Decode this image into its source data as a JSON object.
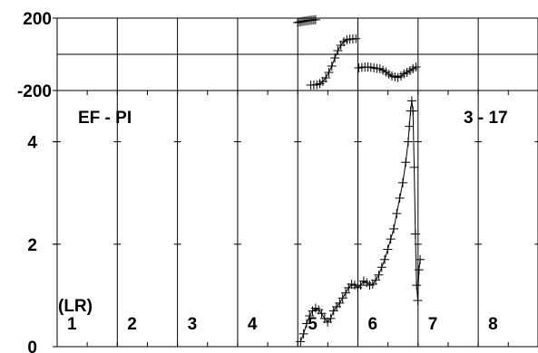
{
  "chart_data": [
    {
      "type": "scatter",
      "panel": "phase",
      "ylim": [
        -200,
        200
      ],
      "xlim": [
        0,
        8
      ],
      "yticks": [
        {
          "value": 200,
          "label": "200"
        },
        {
          "value": -200,
          "label": "-200"
        }
      ],
      "reference_line": 0,
      "series": [
        {
          "segment": 1,
          "x": [
            4.0,
            4.03,
            4.06,
            4.09,
            4.12,
            4.15,
            4.18,
            4.21,
            4.24,
            4.27,
            4.3
          ],
          "y": [
            175,
            178,
            180,
            182,
            184,
            185,
            187,
            188,
            189,
            190,
            191
          ]
        },
        {
          "segment": 2,
          "x": [
            4.22,
            4.27,
            4.32,
            4.37,
            4.42,
            4.47,
            4.52,
            4.57,
            4.62,
            4.67,
            4.72,
            4.77,
            4.82,
            4.87,
            4.92,
            4.97
          ],
          "y": [
            -170,
            -170,
            -168,
            -162,
            -150,
            -130,
            -100,
            -65,
            -20,
            20,
            50,
            70,
            80,
            84,
            85,
            86
          ]
        },
        {
          "segment": 3,
          "x": [
            5.02,
            5.07,
            5.12,
            5.17,
            5.22,
            5.27,
            5.32,
            5.37,
            5.42,
            5.47,
            5.52,
            5.57,
            5.62,
            5.67,
            5.72,
            5.77,
            5.82,
            5.87,
            5.92,
            5.97
          ],
          "y": [
            -75,
            -72,
            -70,
            -70,
            -72,
            -75,
            -78,
            -80,
            -88,
            -98,
            -110,
            -120,
            -125,
            -128,
            -120,
            -108,
            -100,
            -90,
            -80,
            -70
          ]
        }
      ]
    },
    {
      "type": "line",
      "panel": "ratio",
      "ylim": [
        0,
        5
      ],
      "xlim": [
        0,
        8
      ],
      "yticks": [
        {
          "value": 0,
          "label": "0"
        },
        {
          "value": 2,
          "label": "2"
        },
        {
          "value": 4,
          "label": "4"
        }
      ],
      "annotations": {
        "left": "EF - PI",
        "right": "3 - 17",
        "unit": "(LR)"
      },
      "segment_labels": [
        "1",
        "2",
        "3",
        "4",
        "5",
        "6",
        "7",
        "8"
      ],
      "series": [
        {
          "x": [
            4.05,
            4.1,
            4.15,
            4.2,
            4.25,
            4.3,
            4.35,
            4.4,
            4.45,
            4.5,
            4.55,
            4.6,
            4.65,
            4.7,
            4.75,
            4.8,
            4.85,
            4.9,
            4.95,
            5.0,
            5.05,
            5.1,
            5.15,
            5.2,
            5.25,
            5.3,
            5.35,
            5.4,
            5.45,
            5.5,
            5.55,
            5.6,
            5.65,
            5.7,
            5.75,
            5.8,
            5.84,
            5.86,
            5.88,
            5.9,
            5.92,
            5.94,
            5.96,
            5.98,
            6.0,
            6.02,
            6.04
          ],
          "y": [
            0.1,
            0.25,
            0.45,
            0.6,
            0.7,
            0.75,
            0.72,
            0.65,
            0.55,
            0.48,
            0.55,
            0.7,
            0.78,
            0.85,
            0.95,
            1.05,
            1.15,
            1.22,
            1.2,
            1.15,
            1.2,
            1.28,
            1.25,
            1.2,
            1.22,
            1.3,
            1.4,
            1.55,
            1.7,
            1.9,
            2.1,
            2.3,
            2.6,
            2.9,
            3.2,
            3.6,
            4.0,
            4.3,
            4.6,
            4.8,
            4.6,
            3.5,
            2.2,
            1.2,
            0.9,
            1.5,
            1.7
          ]
        }
      ]
    }
  ]
}
